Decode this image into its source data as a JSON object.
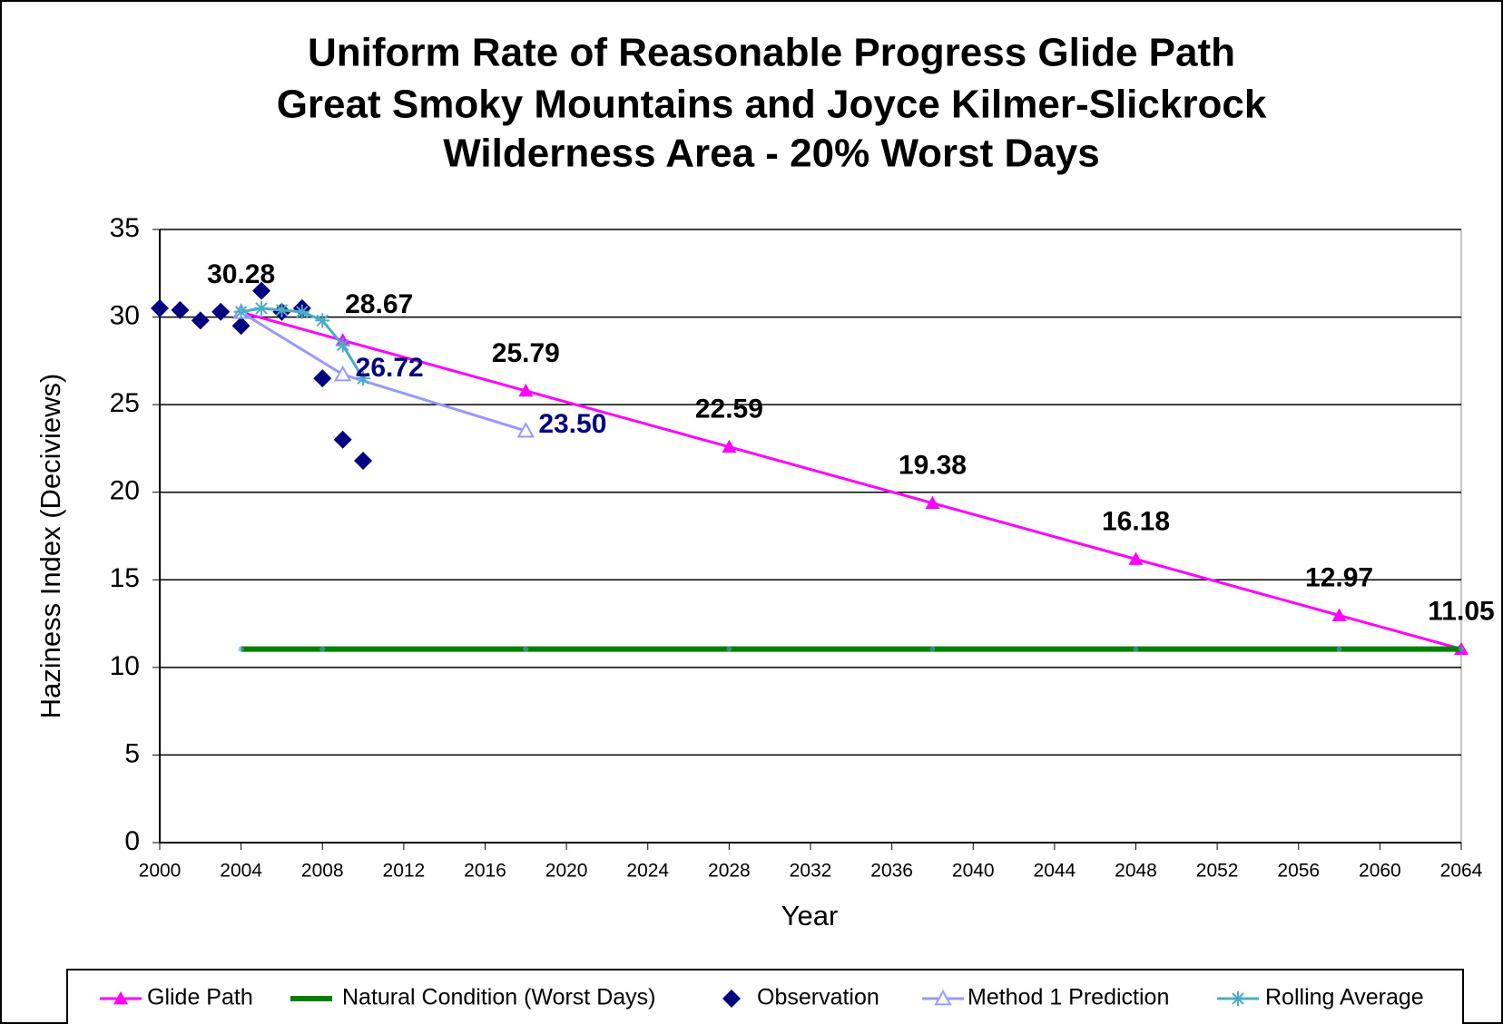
{
  "chart_data": {
    "type": "line",
    "title": [
      "Uniform Rate of Reasonable Progress Glide Path",
      "Great Smoky Mountains and Joyce Kilmer-Slickrock",
      "Wilderness Area - 20% Worst Days"
    ],
    "x_label": "Year",
    "y_label": "Haziness Index (Deciviews)",
    "xlim": [
      2000,
      2064
    ],
    "xticks": [
      2000,
      2004,
      2008,
      2012,
      2016,
      2020,
      2024,
      2028,
      2032,
      2036,
      2040,
      2044,
      2048,
      2052,
      2056,
      2060,
      2064
    ],
    "ylim": [
      0,
      35
    ],
    "yticks": [
      0,
      5,
      10,
      15,
      20,
      25,
      30,
      35
    ],
    "grid": true,
    "legend": "bottom",
    "series": [
      {
        "name": "Glide Path",
        "color": "#ff00ff",
        "marker": "triangle",
        "line": true,
        "label_color": "#000000",
        "x": [
          2004,
          2009,
          2018,
          2028,
          2038,
          2048,
          2058,
          2064
        ],
        "values": [
          30.28,
          28.67,
          25.79,
          22.59,
          19.38,
          16.18,
          12.97,
          11.05
        ]
      },
      {
        "name": "Natural Condition (Worst Days)",
        "color": "#008000",
        "marker": "dot",
        "line": true,
        "x": [
          2004,
          2008,
          2018,
          2028,
          2038,
          2048,
          2058,
          2064
        ],
        "values": [
          11.05,
          11.05,
          11.05,
          11.05,
          11.05,
          11.05,
          11.05,
          11.05
        ]
      },
      {
        "name": "Observation",
        "color": "#000080",
        "marker": "diamond",
        "line": false,
        "x": [
          2000,
          2001,
          2002,
          2003,
          2004,
          2005,
          2006,
          2007,
          2008,
          2009,
          2010
        ],
        "values": [
          30.5,
          30.4,
          29.8,
          30.3,
          29.5,
          31.5,
          30.3,
          30.5,
          26.5,
          23.0,
          21.8
        ]
      },
      {
        "name": "Method 1 Prediction",
        "color": "#9999ff",
        "marker": "triangle-open",
        "line": true,
        "label_color": "#000080",
        "x": [
          2004,
          2009,
          2018
        ],
        "values": [
          30.28,
          26.72,
          23.5
        ],
        "value_labels": [
          null,
          "26.72",
          "23.50"
        ]
      },
      {
        "name": "Rolling Average",
        "color": "#4bacc6",
        "marker": "star",
        "line": true,
        "x": [
          2004,
          2005,
          2006,
          2007,
          2008,
          2009,
          2010
        ],
        "values": [
          30.3,
          30.5,
          30.4,
          30.3,
          29.8,
          28.4,
          26.5
        ]
      }
    ]
  }
}
